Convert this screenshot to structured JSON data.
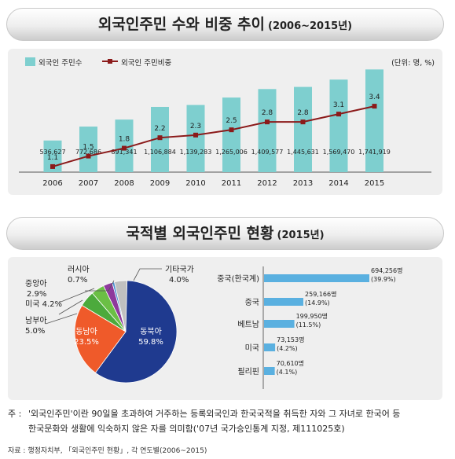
{
  "top": {
    "title": "외국인주민 수와 비중 추이",
    "year_range": "(2006~2015년)",
    "unit": "(단위: 명, %)"
  },
  "bottom": {
    "title": "국적별 외국인주민 현황",
    "year": "(2015년)"
  },
  "colors": {
    "bar": "#7ecfcf",
    "line": "#8b1a1a",
    "pie_northeast": "#1f3a8f",
    "pie_southeast": "#ef5a2a",
    "pie_south": "#4caa3c",
    "pie_us": "#6bbf45",
    "pie_central": "#8e3a9c",
    "pie_russia": "#4a8fd0",
    "pie_other": "#c0c0c0",
    "hbar": "#5ab0e0"
  },
  "chart_data": [
    {
      "type": "bar",
      "categories": [
        "2006",
        "2007",
        "2008",
        "2009",
        "2010",
        "2011",
        "2012",
        "2013",
        "2014",
        "2015"
      ],
      "series": [
        {
          "name": "외국인 주민수",
          "values": [
            536627,
            772686,
            891341,
            1106884,
            1139283,
            1265006,
            1409577,
            1445631,
            1569470,
            1741919
          ],
          "labels": [
            "536,627",
            "772,686",
            "891,341",
            "1,106,884",
            "1,139,283",
            "1,265,006",
            "1,409,577",
            "1,445,631",
            "1,569,470",
            "1,741,919"
          ]
        },
        {
          "name": "외국인 주민비중",
          "type": "line",
          "values": [
            1.1,
            1.5,
            1.8,
            2.2,
            2.3,
            2.5,
            2.8,
            2.8,
            3.1,
            3.4
          ],
          "labels": [
            "1.1",
            "1.5",
            "1.8",
            "2.2",
            "2.3",
            "2.5",
            "2.8",
            "2.8",
            "3.1",
            "3.4"
          ]
        }
      ],
      "legend_position": "top-left"
    },
    {
      "type": "pie",
      "slices": [
        {
          "label": "동북아",
          "value": 59.8,
          "text": "59.8%",
          "color_key": "pie_northeast"
        },
        {
          "label": "동남아",
          "value": 23.5,
          "text": "23.5%",
          "color_key": "pie_southeast"
        },
        {
          "label": "남부아",
          "value": 5.0,
          "text": "5.0%",
          "color_key": "pie_south"
        },
        {
          "label": "미국",
          "value": 4.2,
          "text": "4.2%",
          "color_key": "pie_us"
        },
        {
          "label": "중앙아",
          "value": 2.9,
          "text": "2.9%",
          "color_key": "pie_central"
        },
        {
          "label": "러시아",
          "value": 0.7,
          "text": "0.7%",
          "color_key": "pie_russia"
        },
        {
          "label": "기타국가",
          "value": 4.0,
          "text": "4.0%",
          "color_key": "pie_other"
        }
      ]
    },
    {
      "type": "bar",
      "orientation": "horizontal",
      "categories": [
        "중국(한국계)",
        "중국",
        "베트남",
        "미국",
        "필리핀"
      ],
      "values": [
        694256,
        259166,
        199950,
        73153,
        70610
      ],
      "labels": [
        "694,256명",
        "259,166명",
        "199,950명",
        "73,153명",
        "70,610명"
      ],
      "percents": [
        "(39.9%)",
        "(14.9%)",
        "(11.5%)",
        "(4.2%)",
        "(4.1%)"
      ]
    }
  ],
  "note": {
    "label": "주 :",
    "line1": "'외국인주민'이란 90일을 초과하여 거주하는 등록외국인과 한국국적을 취득한 자와 그 자녀로 한국어 등",
    "line2": "한국문화와 생활에 익숙하지 않은 자를 의미함('07년 국가승인통계 지정, 제111025호)"
  },
  "source": "자료 : 행정자치부, 「외국인주민 현황」, 각 연도별(2006~2015)"
}
